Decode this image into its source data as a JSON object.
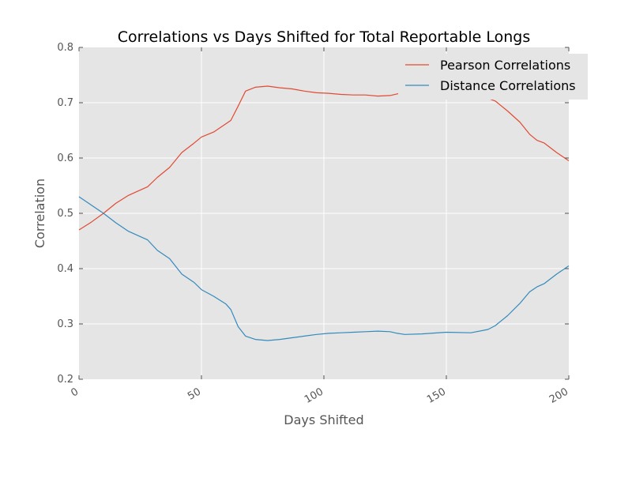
{
  "chart_data": {
    "type": "line",
    "title": "Correlations vs Days Shifted for Total Reportable Longs",
    "xlabel": "Days Shifted",
    "ylabel": "Correlation",
    "xlim": [
      0,
      200
    ],
    "ylim": [
      0.2,
      0.8
    ],
    "x_ticks": [
      0,
      50,
      100,
      150,
      200
    ],
    "x_tick_labels": [
      "0",
      "50",
      "100",
      "150",
      "200"
    ],
    "y_ticks": [
      0.2,
      0.3,
      0.4,
      0.5,
      0.6,
      0.7,
      0.8
    ],
    "y_tick_labels": [
      "0.2",
      "0.3",
      "0.4",
      "0.5",
      "0.6",
      "0.7",
      "0.8"
    ],
    "grid": true,
    "legend_position": "top-right",
    "colors": {
      "background": "#e5e5e5",
      "grid": "#ffffff",
      "tick": "#555555"
    },
    "series": [
      {
        "name": "Pearson Correlations",
        "color": "#e24a33",
        "x": [
          0,
          5,
          10,
          15,
          20,
          25,
          28,
          32,
          37,
          42,
          47,
          50,
          55,
          60,
          62,
          65,
          68,
          72,
          77,
          82,
          87,
          92,
          97,
          102,
          107,
          112,
          117,
          122,
          127,
          130,
          133,
          140,
          150,
          160,
          167,
          170,
          175,
          180,
          184,
          187,
          190,
          195,
          200
        ],
        "y": [
          0.47,
          0.484,
          0.5,
          0.518,
          0.532,
          0.542,
          0.548,
          0.565,
          0.583,
          0.61,
          0.627,
          0.638,
          0.647,
          0.662,
          0.668,
          0.694,
          0.721,
          0.728,
          0.73,
          0.727,
          0.725,
          0.721,
          0.718,
          0.717,
          0.715,
          0.714,
          0.714,
          0.712,
          0.713,
          0.716,
          0.72,
          0.722,
          0.722,
          0.718,
          0.708,
          0.703,
          0.685,
          0.665,
          0.643,
          0.632,
          0.627,
          0.61,
          0.595
        ]
      },
      {
        "name": "Distance Correlations",
        "color": "#348abd",
        "x": [
          0,
          5,
          10,
          15,
          20,
          25,
          28,
          32,
          37,
          42,
          47,
          50,
          55,
          60,
          62,
          65,
          68,
          72,
          77,
          82,
          87,
          92,
          97,
          102,
          107,
          112,
          117,
          122,
          127,
          130,
          133,
          140,
          150,
          160,
          167,
          170,
          175,
          180,
          184,
          187,
          190,
          195,
          200
        ],
        "y": [
          0.53,
          0.515,
          0.5,
          0.483,
          0.468,
          0.458,
          0.452,
          0.433,
          0.418,
          0.39,
          0.375,
          0.362,
          0.35,
          0.336,
          0.326,
          0.295,
          0.278,
          0.272,
          0.27,
          0.272,
          0.275,
          0.278,
          0.281,
          0.283,
          0.284,
          0.285,
          0.286,
          0.287,
          0.286,
          0.283,
          0.281,
          0.282,
          0.285,
          0.284,
          0.29,
          0.297,
          0.315,
          0.337,
          0.358,
          0.367,
          0.373,
          0.39,
          0.405
        ]
      }
    ]
  }
}
